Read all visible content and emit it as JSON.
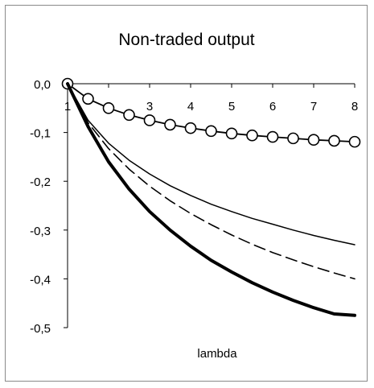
{
  "chart_data": {
    "type": "line",
    "title": "Non-traded output",
    "xlabel": "lambda",
    "ylabel": "",
    "xlim": [
      1,
      8
    ],
    "ylim": [
      -0.5,
      0.0
    ],
    "x_ticks": [
      "1",
      "2",
      "3",
      "4",
      "5",
      "6",
      "7",
      "8"
    ],
    "y_ticks": [
      "0,0",
      "-0,1",
      "-0,2",
      "-0,3",
      "-0,4",
      "-0,5"
    ],
    "grid": false,
    "legend": "none",
    "series": [
      {
        "style": "solid-circle-markers",
        "color": "#000000",
        "x": [
          1,
          1.5,
          2,
          2.5,
          3,
          3.5,
          4,
          4.5,
          5,
          5.5,
          6,
          6.5,
          7,
          7.5,
          8
        ],
        "y": [
          0,
          -0.031,
          -0.05,
          -0.064,
          -0.075,
          -0.084,
          -0.091,
          -0.097,
          -0.102,
          -0.106,
          -0.109,
          -0.112,
          -0.115,
          -0.117,
          -0.119
        ]
      },
      {
        "style": "thin-solid",
        "color": "#000000",
        "x": [
          1,
          1.5,
          2,
          2.5,
          3,
          3.5,
          4,
          4.5,
          5,
          5.5,
          6,
          6.5,
          7,
          7.5,
          8
        ],
        "y": [
          0,
          -0.075,
          -0.122,
          -0.157,
          -0.185,
          -0.209,
          -0.229,
          -0.247,
          -0.262,
          -0.276,
          -0.288,
          -0.3,
          -0.311,
          -0.321,
          -0.33
        ]
      },
      {
        "style": "dashed",
        "color": "#000000",
        "x": [
          1,
          1.5,
          2,
          2.5,
          3,
          3.5,
          4,
          4.5,
          5,
          5.5,
          6,
          6.5,
          7,
          7.5,
          8
        ],
        "y": [
          0,
          -0.08,
          -0.133,
          -0.175,
          -0.21,
          -0.24,
          -0.266,
          -0.289,
          -0.31,
          -0.329,
          -0.346,
          -0.361,
          -0.375,
          -0.388,
          -0.4
        ]
      },
      {
        "style": "thick-solid",
        "color": "#000000",
        "x": [
          1,
          1.5,
          2,
          2.5,
          3,
          3.5,
          4,
          4.5,
          5,
          5.5,
          6,
          6.5,
          7,
          7.5,
          8
        ],
        "y": [
          0,
          -0.088,
          -0.16,
          -0.216,
          -0.262,
          -0.3,
          -0.333,
          -0.362,
          -0.386,
          -0.408,
          -0.427,
          -0.444,
          -0.459,
          -0.472,
          -0.475
        ]
      }
    ]
  }
}
